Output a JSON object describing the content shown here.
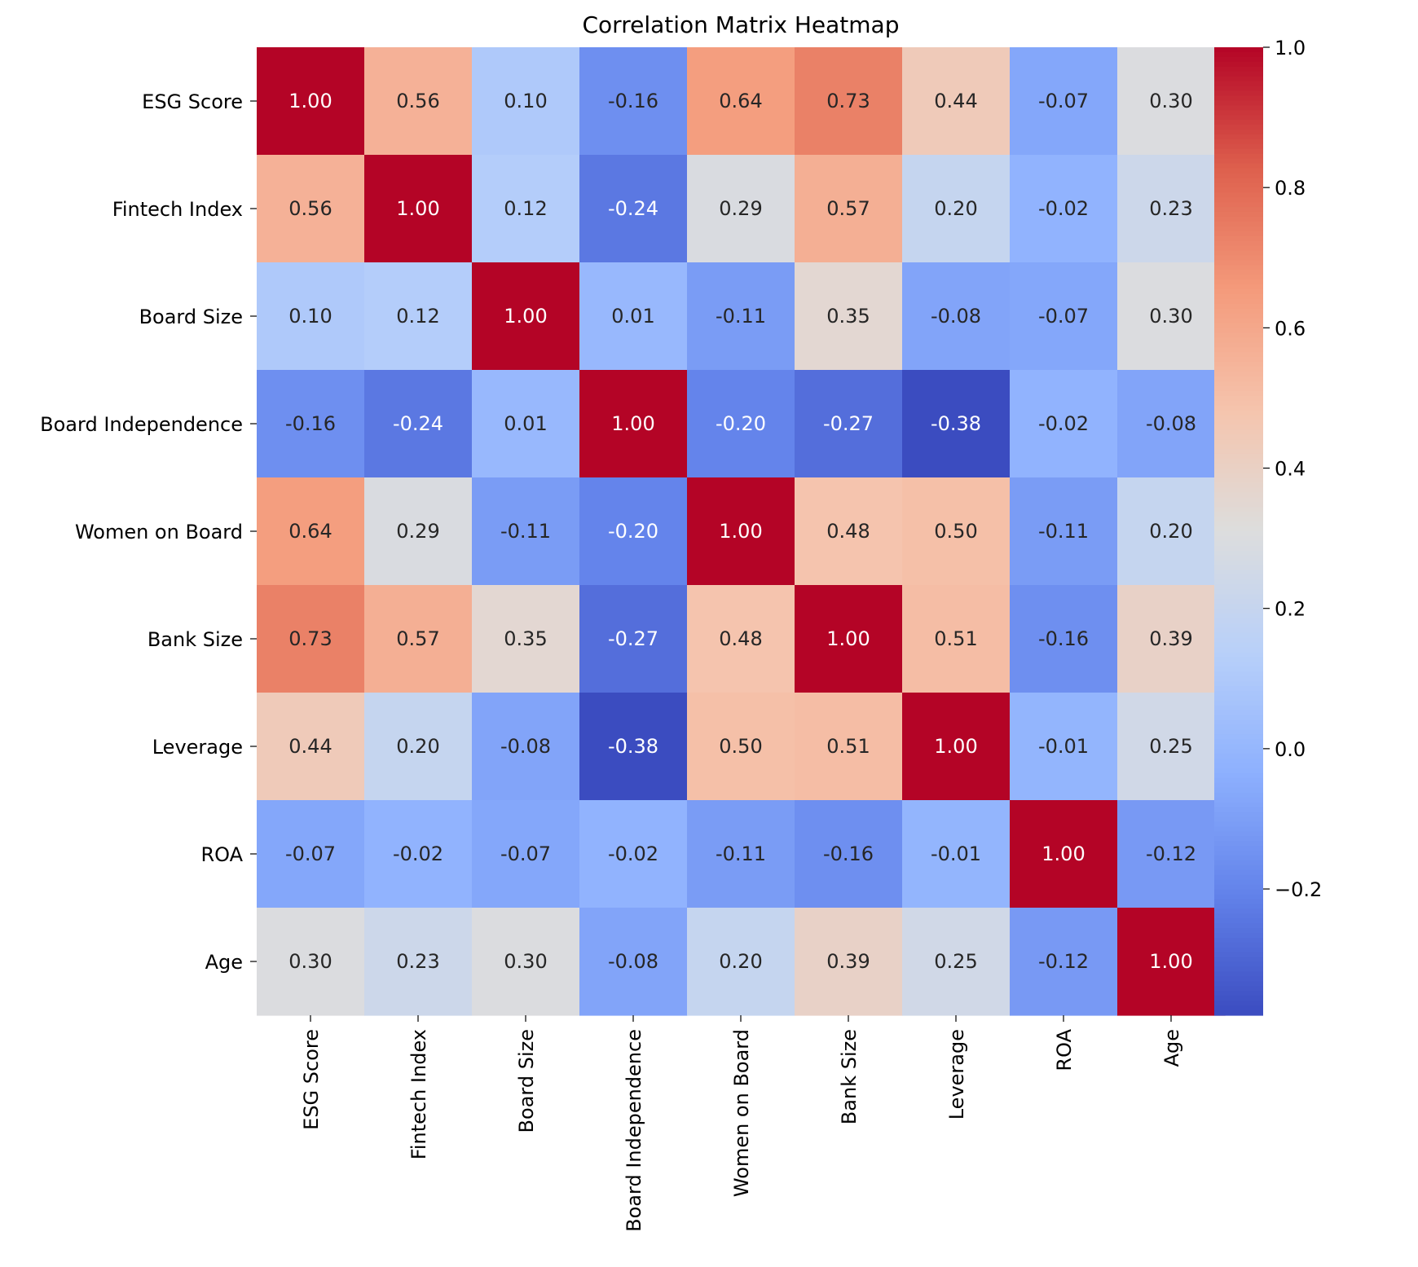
{
  "chart_data": {
    "type": "heatmap",
    "title": "Correlation Matrix Heatmap",
    "xlabel": "",
    "ylabel": "",
    "x_categories": [
      "ESG Score",
      "Fintech Index",
      "Board Size",
      "Board Independence",
      "Women on Board",
      "Bank Size",
      "Leverage",
      "ROA",
      "Age"
    ],
    "y_categories": [
      "ESG Score",
      "Fintech Index",
      "Board Size",
      "Board Independence",
      "Women on Board",
      "Bank Size",
      "Leverage",
      "ROA",
      "Age"
    ],
    "values": [
      [
        1.0,
        0.56,
        0.1,
        -0.16,
        0.64,
        0.73,
        0.44,
        -0.07,
        0.3
      ],
      [
        0.56,
        1.0,
        0.12,
        -0.24,
        0.29,
        0.57,
        0.2,
        -0.02,
        0.23
      ],
      [
        0.1,
        0.12,
        1.0,
        0.01,
        -0.11,
        0.35,
        -0.08,
        -0.07,
        0.3
      ],
      [
        -0.16,
        -0.24,
        0.01,
        1.0,
        -0.2,
        -0.27,
        -0.38,
        -0.02,
        -0.08
      ],
      [
        0.64,
        0.29,
        -0.11,
        -0.2,
        1.0,
        0.48,
        0.5,
        -0.11,
        0.2
      ],
      [
        0.73,
        0.57,
        0.35,
        -0.27,
        0.48,
        1.0,
        0.51,
        -0.16,
        0.39
      ],
      [
        0.44,
        0.2,
        -0.08,
        -0.38,
        0.5,
        0.51,
        1.0,
        -0.01,
        0.25
      ],
      [
        -0.07,
        -0.02,
        -0.07,
        -0.02,
        -0.11,
        -0.16,
        -0.01,
        1.0,
        -0.12
      ],
      [
        0.3,
        0.23,
        0.3,
        -0.08,
        0.2,
        0.39,
        0.25,
        -0.12,
        1.0
      ]
    ],
    "annotation_format": "0.00",
    "colormap": "coolwarm",
    "value_range": [
      -0.38,
      1.0
    ],
    "colorbar": {
      "ticks": [
        -0.2,
        0.0,
        0.2,
        0.4,
        0.6,
        0.8,
        1.0
      ],
      "tick_labels": [
        "−0.2",
        "0.0",
        "0.2",
        "0.4",
        "0.6",
        "0.8",
        "1.0"
      ],
      "placement": "right"
    },
    "grid": false
  }
}
